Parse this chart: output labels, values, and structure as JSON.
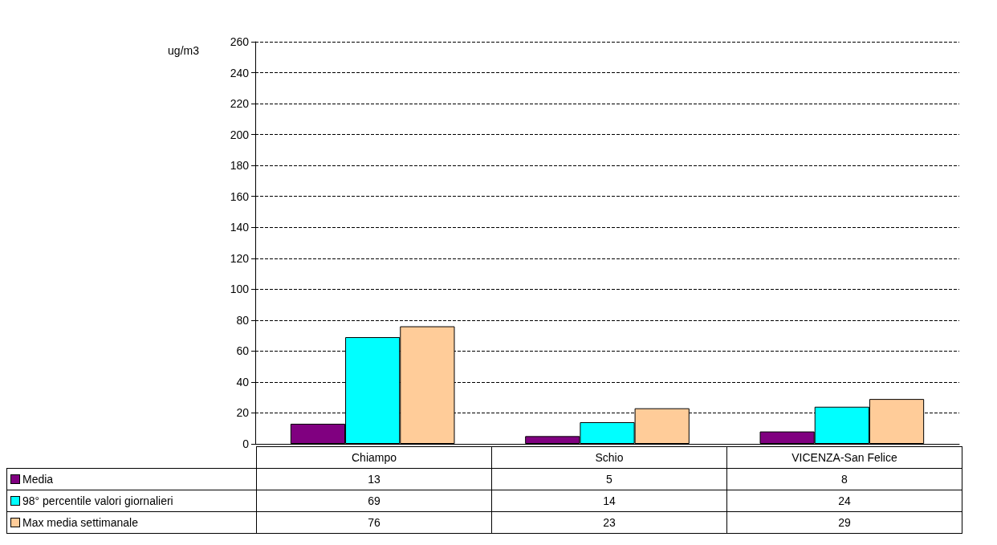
{
  "chart_data": {
    "type": "bar",
    "ylabel": "ug/m3",
    "categories": [
      "Chiampo",
      "Schio",
      "VICENZA-San Felice"
    ],
    "series": [
      {
        "name": "Media",
        "color": "#800080",
        "values": [
          13,
          5,
          8
        ]
      },
      {
        "name": "98° percentile valori giornalieri",
        "color": "#00ffff",
        "values": [
          69,
          14,
          24
        ]
      },
      {
        "name": "Max media settimanale",
        "color": "#ffcc99",
        "values": [
          76,
          23,
          29
        ]
      }
    ],
    "ylim": [
      0,
      260
    ],
    "yticks": [
      0,
      20,
      40,
      60,
      80,
      100,
      120,
      140,
      160,
      180,
      200,
      220,
      240,
      260
    ],
    "grid": "y",
    "legend": "bottom left",
    "data_labels": true
  }
}
